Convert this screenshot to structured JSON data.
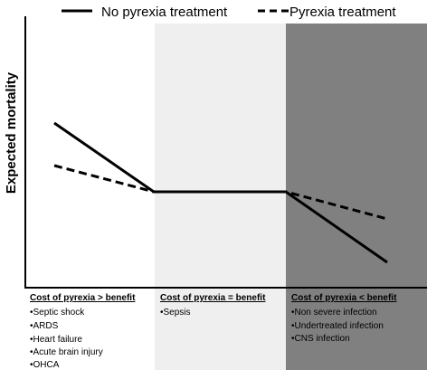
{
  "legend": {
    "solid_label": "No pyrexia treatment",
    "dashed_label": "Pyrexia treatment"
  },
  "y_axis_label": "Expected mortality",
  "zones": [
    {
      "heading": "Cost of pyrexia > benefit",
      "items": [
        "•Septic shock",
        "•ARDS",
        "•Heart failure",
        "•Acute brain injury",
        "•OHCA"
      ],
      "shade": "#ffffff"
    },
    {
      "heading": "Cost of pyrexia = benefit",
      "items": [
        "•Sepsis"
      ],
      "shade": "#efefef"
    },
    {
      "heading": "Cost of pyrexia < benefit",
      "items": [
        "•Non severe infection",
        "•Undertreated infection",
        "•CNS infection"
      ],
      "shade": "#808080"
    }
  ],
  "colors": {
    "line": "#000000",
    "axis": "#000000"
  }
}
